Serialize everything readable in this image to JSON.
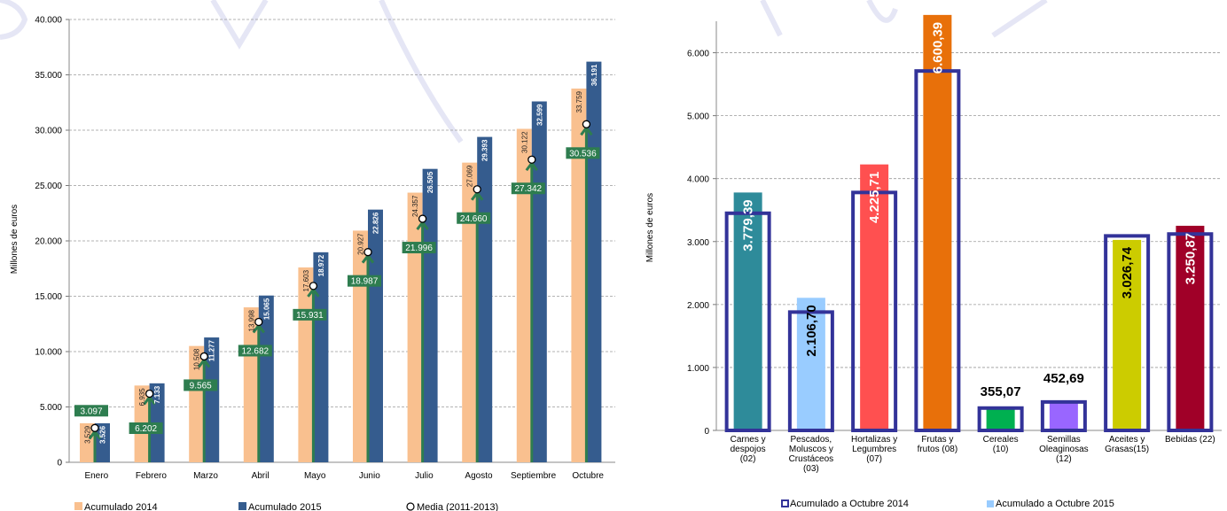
{
  "colors": {
    "bar_2014": "#F9C08F",
    "bar_2015": "#355C8E",
    "arrow": "#2E7D4F",
    "mean_box": "#2E7D4F",
    "outline": "#333399",
    "watermark": "#E5E6F5"
  },
  "chart_data": [
    {
      "type": "bar",
      "ylabel": "Millones de euros",
      "ylim": [
        0,
        40000
      ],
      "ytick_values": [
        0,
        5000,
        10000,
        15000,
        20000,
        25000,
        30000,
        35000,
        40000
      ],
      "yticks": [
        "0",
        "5.000",
        "10.000",
        "15.000",
        "20.000",
        "25.000",
        "30.000",
        "35.000",
        "40.000"
      ],
      "grid": true,
      "legend_position": "bottom",
      "categories": [
        "Enero",
        "Febrero",
        "Marzo",
        "Abril",
        "Mayo",
        "Junio",
        "Julio",
        "Agosto",
        "Septiembre",
        "Octubre"
      ],
      "series": [
        {
          "name": "Acumulado 2014",
          "values": [
            3529,
            6935,
            10508,
            13998,
            17603,
            20927,
            24357,
            27069,
            30122,
            33759
          ],
          "labels": [
            "3.529",
            "6.935",
            "10.508",
            "13.998",
            "17.603",
            "20.927",
            "24.357",
            "27.069",
            "30.122",
            "33.759"
          ]
        },
        {
          "name": "Acumulado 2015",
          "values": [
            3526,
            7133,
            11277,
            15065,
            18972,
            22826,
            26505,
            29393,
            32599,
            36191
          ],
          "labels": [
            "3.526",
            "7.133",
            "11.277",
            "15.065",
            "18.972",
            "22.826",
            "26.505",
            "29.393",
            "32.599",
            "36.191"
          ]
        },
        {
          "name": "Media (2011-2013)",
          "values": [
            3097,
            6202,
            9565,
            12682,
            15931,
            18987,
            21996,
            24660,
            27342,
            30536
          ],
          "labels": [
            "3.097",
            "6.202",
            "9.565",
            "12.682",
            "15.931",
            "18.987",
            "21.996",
            "24.660",
            "27.342",
            "30.536"
          ]
        }
      ]
    },
    {
      "type": "bar",
      "ylabel": "Millones de euros",
      "ylim": [
        0,
        6500
      ],
      "ytick_values": [
        0,
        1000,
        2000,
        3000,
        4000,
        5000,
        6000
      ],
      "yticks": [
        "0",
        "1.000",
        "2.000",
        "3.000",
        "4.000",
        "5.000",
        "6.000"
      ],
      "grid": true,
      "legend_position": "bottom",
      "categories": [
        [
          "Carnes y",
          "despojos",
          "(02)"
        ],
        [
          "Pescados,",
          "Moluscos y",
          "Crustáceos",
          "(03)"
        ],
        [
          "Hortalizas y",
          "Legumbres",
          "(07)"
        ],
        [
          "Frutas y",
          "frutos (08)"
        ],
        [
          "Cereales",
          "(10)"
        ],
        [
          "Semillas",
          "Oleaginosas",
          "(12)"
        ],
        [
          "Aceites y",
          "Grasas(15)"
        ],
        [
          "Bebidas (22)"
        ]
      ],
      "series": [
        {
          "name": "Acumulado a Octubre 2014",
          "values": [
            3450,
            1880,
            3780,
            5710,
            355,
            452,
            3090,
            3120
          ]
        },
        {
          "name": "Acumulado a Octubre 2015",
          "values": [
            3779.39,
            2106.7,
            4225.71,
            6600.39,
            355.07,
            452.69,
            3026.74,
            3250.87
          ],
          "labels": [
            "3.779,39",
            "2.106,70",
            "4.225,71",
            "6.600,39",
            "355,07",
            "452,69",
            "3.026,74",
            "3.250,87"
          ],
          "colors": [
            "#2E8B9A",
            "#99CCFF",
            "#FF5050",
            "#E8700A",
            "#00B050",
            "#9966FF",
            "#CCCC00",
            "#A00028"
          ]
        }
      ]
    }
  ]
}
